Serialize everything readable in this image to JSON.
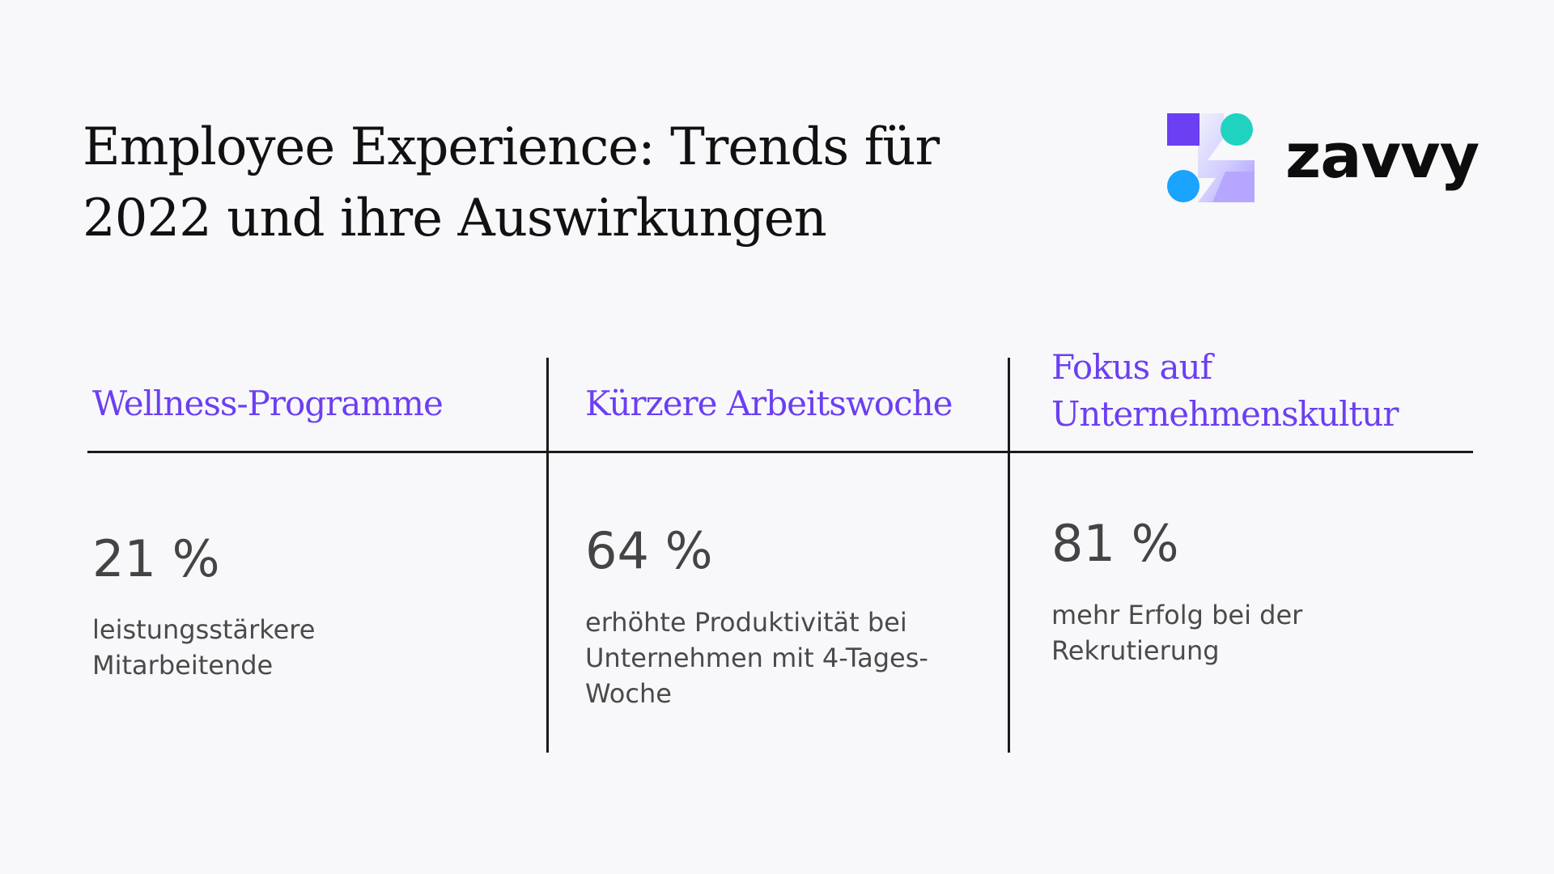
{
  "title": "Employee Experience: Trends für 2022 und ihre Auswirkungen",
  "brand": {
    "name": "zavvy",
    "colors": {
      "purple": "#6b3ff2",
      "teal": "#1fd3c0",
      "blue": "#1aa3ff",
      "lavender": "#b7a6ff"
    }
  },
  "columns": [
    {
      "heading": "Wellness-Programme",
      "stat": "21 %",
      "description": "leistungsstärkere Mitarbeitende"
    },
    {
      "heading": "Kürzere Arbeitswoche",
      "stat": "64 %",
      "description": "erhöhte Produktivität bei Unternehmen mit 4-Tages-Woche"
    },
    {
      "heading": "Fokus auf Unternehmenskultur",
      "stat": "81 %",
      "description": "mehr Erfolg bei der Rekrutierung"
    }
  ],
  "colors": {
    "accent": "#6b3ff2",
    "text": "#111111",
    "muted_text": "#444444",
    "background": "#f8f8fb"
  }
}
